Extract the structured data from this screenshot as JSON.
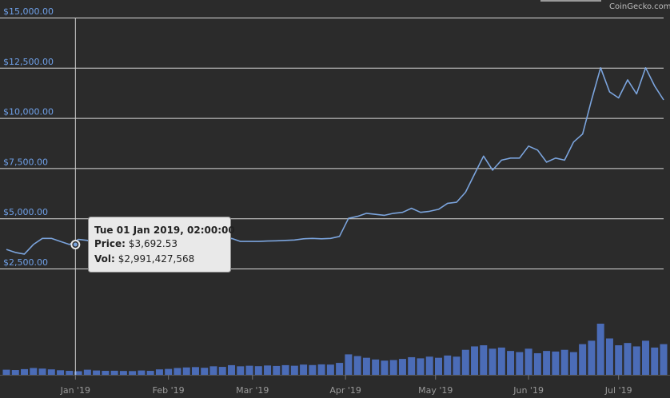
{
  "chart_data": {
    "type": "line",
    "credit": "CoinGecko.com",
    "color": "#7ba4dd",
    "volume_color": "#4b6cb7",
    "grid": true,
    "xlim": [
      0,
      219
    ],
    "xticks": [
      {
        "value": 23,
        "label": "Jan '19"
      },
      {
        "value": 54,
        "label": "Feb '19"
      },
      {
        "value": 82,
        "label": "Mar '19"
      },
      {
        "value": 113,
        "label": "Apr '19"
      },
      {
        "value": 143,
        "label": "May '19"
      },
      {
        "value": 174,
        "label": "Jun '19"
      },
      {
        "value": 204,
        "label": "Jul '19"
      }
    ],
    "ylim": [
      2500,
      15000
    ],
    "yticks": [
      {
        "value": 2500,
        "label": "$2,500.00"
      },
      {
        "value": 5000,
        "label": "$5,000.00"
      },
      {
        "value": 7500,
        "label": "$7,500.00"
      },
      {
        "value": 10000,
        "label": "$10,000.00"
      },
      {
        "value": 12500,
        "label": "$12,500.00"
      },
      {
        "value": 15000,
        "label": "$15,000.00"
      }
    ],
    "x": [
      0,
      3,
      6,
      9,
      12,
      15,
      18,
      21,
      24,
      27,
      30,
      33,
      36,
      39,
      42,
      45,
      48,
      51,
      54,
      57,
      60,
      63,
      66,
      69,
      72,
      75,
      78,
      81,
      84,
      87,
      90,
      93,
      96,
      99,
      102,
      105,
      108,
      111,
      114,
      117,
      120,
      123,
      126,
      129,
      132,
      135,
      138,
      141,
      144,
      147,
      150,
      153,
      156,
      159,
      162,
      165,
      168,
      171,
      174,
      177,
      180,
      183,
      186,
      189,
      192,
      195,
      198,
      201,
      204,
      207,
      210,
      213,
      216,
      219
    ],
    "values": [
      3450,
      3300,
      3220,
      3700,
      4000,
      4000,
      3850,
      3700,
      3950,
      3900,
      3650,
      3600,
      3650,
      3600,
      3580,
      3550,
      3600,
      3500,
      3450,
      3450,
      3550,
      3600,
      3620,
      3700,
      3700,
      4000,
      3850,
      3850,
      3850,
      3870,
      3880,
      3900,
      3920,
      3980,
      4000,
      3980,
      4000,
      4100,
      5000,
      5100,
      5250,
      5200,
      5150,
      5250,
      5300,
      5500,
      5300,
      5350,
      5450,
      5750,
      5800,
      6300,
      7200,
      8100,
      7400,
      7900,
      8000,
      8000,
      8600,
      8400,
      7800,
      8000,
      7900,
      8800,
      9200,
      10900,
      12500,
      11300,
      11000,
      11900,
      11200,
      12500,
      11600,
      10900
    ],
    "volume": [
      4500000000.0,
      4200000000.0,
      5000000000.0,
      6000000000.0,
      5500000000.0,
      4800000000.0,
      4000000000.0,
      3500000000.0,
      3200000000.0,
      4500000000.0,
      3800000000.0,
      3500000000.0,
      3600000000.0,
      3400000000.0,
      3300000000.0,
      3800000000.0,
      3500000000.0,
      4800000000.0,
      5200000000.0,
      6000000000.0,
      6500000000.0,
      6800000000.0,
      6200000000.0,
      7500000000.0,
      7000000000.0,
      8500000000.0,
      7500000000.0,
      8000000000.0,
      7600000000.0,
      8200000000.0,
      7800000000.0,
      8500000000.0,
      8000000000.0,
      9000000000.0,
      8600000000.0,
      9200000000.0,
      9000000000.0,
      10500000000.0,
      18000000000.0,
      16500000000.0,
      15000000000.0,
      13500000000.0,
      12500000000.0,
      13000000000.0,
      14000000000.0,
      15500000000.0,
      14500000000.0,
      16000000000.0,
      15000000000.0,
      17000000000.0,
      16000000000.0,
      22000000000.0,
      25000000000.0,
      26000000000.0,
      23000000000.0,
      24000000000.0,
      21000000000.0,
      20000000000.0,
      23000000000.0,
      19000000000.0,
      21000000000.0,
      20500000000.0,
      22000000000.0,
      20000000000.0,
      27000000000.0,
      30000000000.0,
      45000000000.0,
      32000000000.0,
      26000000000.0,
      28000000000.0,
      25000000000.0,
      30000000000.0,
      24000000000.0,
      27000000000.0
    ],
    "tooltip": {
      "x": 23,
      "date": "Tue 01 Jan 2019, 02:00:00",
      "price_label": "Price:",
      "price": {
        "value": 3692.53,
        "label": "$3,692.53"
      },
      "vol_label": "Vol:",
      "vol": {
        "value": 2991427568,
        "label": "$2,991,427,568"
      }
    }
  }
}
